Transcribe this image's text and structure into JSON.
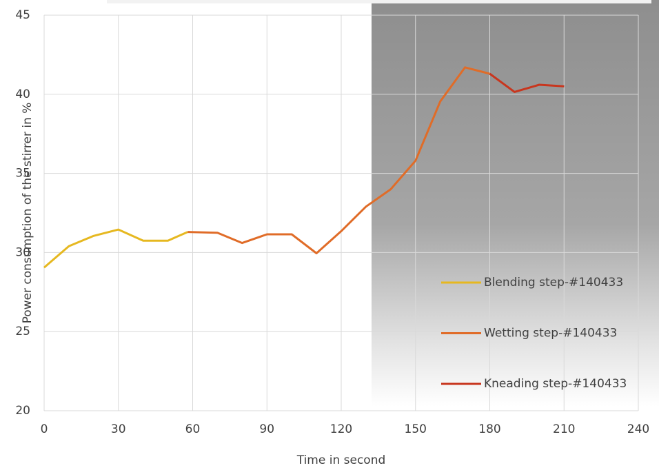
{
  "chart_data": {
    "type": "line",
    "x_label": "Time in second",
    "y_label": "Power consumption of the stirrer in %",
    "xlim": [
      0,
      240
    ],
    "xticks": [
      0,
      30,
      60,
      90,
      120,
      150,
      180,
      210,
      240
    ],
    "ylim": [
      20,
      45
    ],
    "yticks": [
      20,
      25,
      30,
      35,
      40,
      45
    ],
    "grid": true,
    "legend": "right",
    "series": [
      {
        "name": "Blending step-#140433",
        "color": "#e6b820",
        "x": [
          0,
          10,
          20,
          30,
          40,
          50,
          58
        ],
        "values": [
          29.05,
          30.4,
          31.05,
          31.45,
          30.75,
          30.75,
          31.3
        ]
      },
      {
        "name": "Wetting step-#140433",
        "color": "#e06c28",
        "x": [
          58,
          70,
          80,
          90,
          100,
          110,
          120,
          130,
          140,
          150,
          160,
          170,
          180
        ],
        "values": [
          31.3,
          31.25,
          30.6,
          31.15,
          31.15,
          29.95,
          31.35,
          32.9,
          34.0,
          35.8,
          39.55,
          41.7,
          41.3
        ]
      },
      {
        "name": "Kneading step-#140433",
        "color": "#c8361e",
        "x": [
          180,
          190,
          200,
          210
        ],
        "values": [
          41.3,
          40.15,
          40.6,
          40.5
        ]
      }
    ]
  }
}
